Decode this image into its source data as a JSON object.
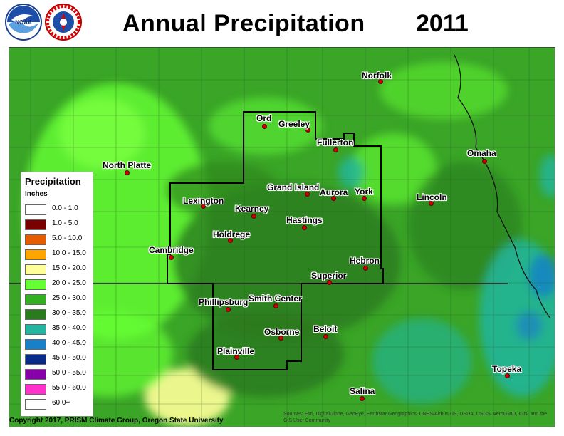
{
  "title": "Annual Precipitation",
  "year": "2011",
  "logos": [
    {
      "name": "noaa-logo",
      "text": "NOAA"
    },
    {
      "name": "nws-logo",
      "text": "NATIONAL WEATHER SERVICE"
    }
  ],
  "legend": {
    "title": "Precipitation",
    "units": "Inches",
    "items": [
      {
        "label": "0.0 - 1.0",
        "color": "#ffffff"
      },
      {
        "label": "1.0 - 5.0",
        "color": "#7a0000"
      },
      {
        "label": "5.0 - 10.0",
        "color": "#e65c00"
      },
      {
        "label": "10.0 - 15.0",
        "color": "#ffa500"
      },
      {
        "label": "15.0 - 20.0",
        "color": "#ffff99"
      },
      {
        "label": "20.0 - 25.0",
        "color": "#66ff33"
      },
      {
        "label": "25.0 - 30.0",
        "color": "#33b020"
      },
      {
        "label": "30.0 - 35.0",
        "color": "#2a7a1e"
      },
      {
        "label": "35.0 - 40.0",
        "color": "#22b5a0"
      },
      {
        "label": "40.0 - 45.0",
        "color": "#1880c8"
      },
      {
        "label": "45.0 - 50.0",
        "color": "#0a2a8a"
      },
      {
        "label": "50.0 - 55.0",
        "color": "#8800aa"
      },
      {
        "label": "55.0 - 60.0",
        "color": "#ff33cc"
      },
      {
        "label": "60.0+",
        "color": "#ffffff"
      }
    ]
  },
  "cities": [
    {
      "name": "Ord"
    },
    {
      "name": "Greeley"
    },
    {
      "name": "Norfolk"
    },
    {
      "name": "Fullerton"
    },
    {
      "name": "Omaha"
    },
    {
      "name": "North Platte"
    },
    {
      "name": "Grand Island"
    },
    {
      "name": "Aurora"
    },
    {
      "name": "York"
    },
    {
      "name": "Lincoln"
    },
    {
      "name": "Lexington"
    },
    {
      "name": "Kearney"
    },
    {
      "name": "Hastings"
    },
    {
      "name": "Holdrege"
    },
    {
      "name": "Cambridge"
    },
    {
      "name": "Hebron"
    },
    {
      "name": "Superior"
    },
    {
      "name": "Phillipsburg"
    },
    {
      "name": "Smith Center"
    },
    {
      "name": "Osborne"
    },
    {
      "name": "Beloit"
    },
    {
      "name": "Plainville"
    },
    {
      "name": "Topeka"
    },
    {
      "name": "Salina"
    }
  ],
  "copyright": "Copyright 2017, PRISM Climate Group, Oregon State University",
  "attribution": "Sources: Esri, DigitalGlobe, GeoEye, Earthstar Geographics, CNES/Airbus DS, USDA, USGS, AeroGRID, IGN, and the GIS User Community"
}
